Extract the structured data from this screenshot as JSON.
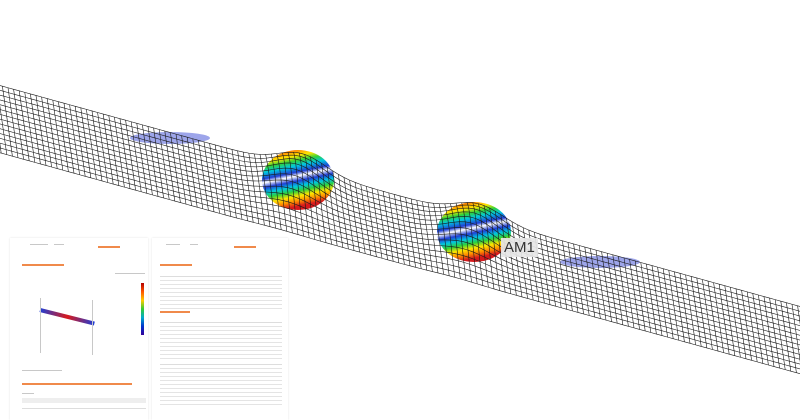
{
  "model": {
    "mode_label": "AM1",
    "mesh_color": "#1a1a1a",
    "contour_colors": [
      "#d7191c",
      "#ff8c00",
      "#ffe600",
      "#2fd13a",
      "#00c8e0",
      "#1f3fd6",
      "#3b2ca8"
    ]
  },
  "report_pages": {
    "accent_color": "#f08a4b",
    "legend_colors": [
      "#b30000",
      "#ff5500",
      "#ffcc00",
      "#33cc33",
      "#00aacc",
      "#0033cc",
      "#330099"
    ]
  }
}
